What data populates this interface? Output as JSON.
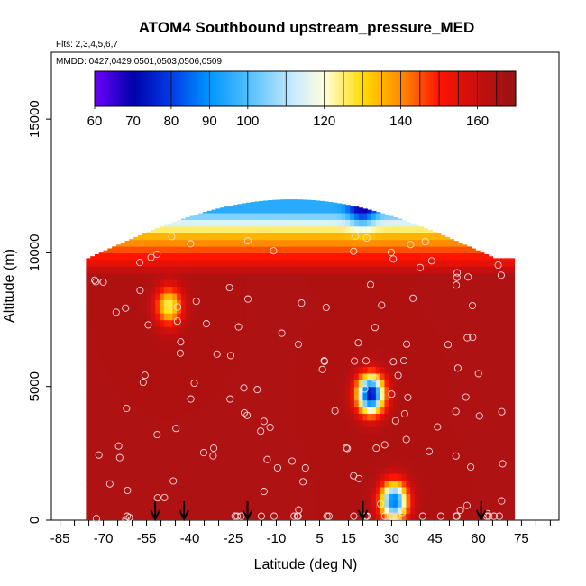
{
  "chart_data": {
    "type": "heatmap",
    "title": "ATOM4 Southbound upstream_pressure_MED",
    "subtitle_flights": "Flts: 2,3,4,5,6,7",
    "subtitle_dates": "MMDD: 0427,0429,0501,0503,0506,0509",
    "xlabel": "Latitude (deg N)",
    "ylabel": "Altitude (m)",
    "xlim": [
      -88,
      88
    ],
    "ylim": [
      0,
      17500
    ],
    "x_ticks": [
      "-85",
      "-70",
      "-55",
      "-40",
      "-25",
      "-10",
      "5",
      "15",
      "30",
      "45",
      "60",
      "75"
    ],
    "y_ticks": [
      "0",
      "5000",
      "10000",
      "15000"
    ],
    "colorbar": {
      "ticks": [
        "60",
        "70",
        "80",
        "90",
        "100",
        "120",
        "140",
        "160"
      ],
      "range": [
        60,
        170
      ]
    },
    "grid": false,
    "field_extent": {
      "lat_range": [
        -76,
        72
      ],
      "alt_range": [
        0,
        12000
      ]
    },
    "background_value": 165,
    "upper_band_values": {
      "at_9500m": 155,
      "at_10500m": 135,
      "at_11500m": 95
    },
    "low_pressure_features": [
      {
        "lat": 19,
        "alt": 11800,
        "value": 62
      },
      {
        "lat": 22,
        "alt": 4600,
        "value": 70
      },
      {
        "lat": 30,
        "alt": 600,
        "value": 85
      },
      {
        "lat": -48,
        "alt": 7900,
        "value": 125
      }
    ],
    "flight_markers_lat": [
      -52,
      -42,
      -20,
      20,
      61
    ]
  }
}
